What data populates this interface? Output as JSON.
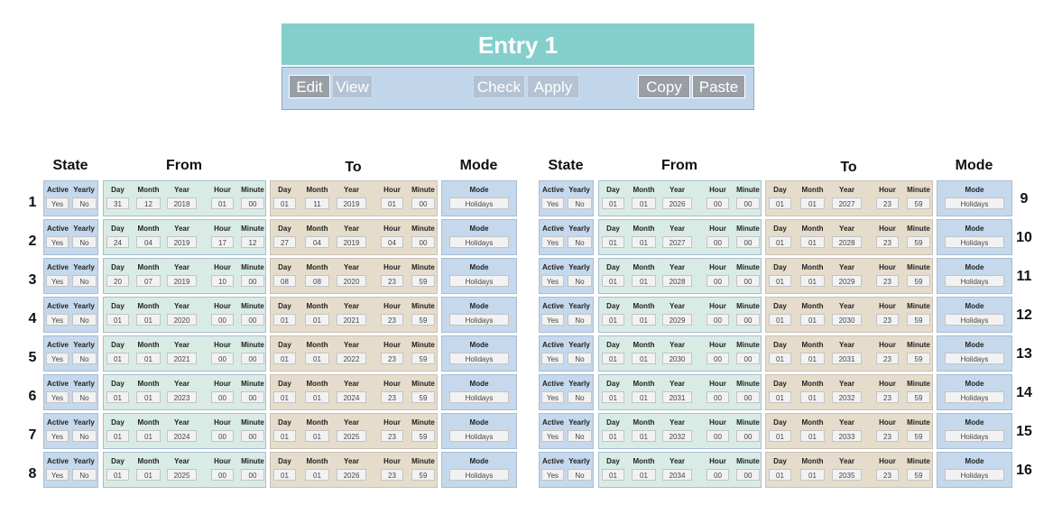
{
  "title": "Entry 1",
  "toolbar": {
    "edit": "Edit",
    "view": "View",
    "check": "Check",
    "apply": "Apply",
    "copy": "Copy",
    "paste": "Paste"
  },
  "headers": {
    "state": "State",
    "from": "From",
    "to": "To",
    "mode": "Mode"
  },
  "field_labels": {
    "active": "Active",
    "yearly": "Yearly",
    "day": "Day",
    "month": "Month",
    "year": "Year",
    "hour": "Hour",
    "minute": "Minute",
    "mode": "Mode"
  },
  "colors": {
    "title": "#84cfcc",
    "toolbar": "#c2d6eb",
    "state": "#c5d8ec",
    "from": "#d9ebe5",
    "to": "#e6dccb"
  },
  "entries": [
    {
      "n": "1",
      "active": "Yes",
      "yearly": "No",
      "from": [
        "31",
        "12",
        "2018",
        "01",
        "00"
      ],
      "to": [
        "01",
        "11",
        "2019",
        "01",
        "00"
      ],
      "mode": "Holidays"
    },
    {
      "n": "2",
      "active": "Yes",
      "yearly": "No",
      "from": [
        "24",
        "04",
        "2019",
        "17",
        "12"
      ],
      "to": [
        "27",
        "04",
        "2019",
        "04",
        "00"
      ],
      "mode": "Holidays"
    },
    {
      "n": "3",
      "active": "Yes",
      "yearly": "No",
      "from": [
        "20",
        "07",
        "2019",
        "10",
        "00"
      ],
      "to": [
        "08",
        "08",
        "2020",
        "23",
        "59"
      ],
      "mode": "Holidays"
    },
    {
      "n": "4",
      "active": "Yes",
      "yearly": "No",
      "from": [
        "01",
        "01",
        "2020",
        "00",
        "00"
      ],
      "to": [
        "01",
        "01",
        "2021",
        "23",
        "59"
      ],
      "mode": "Holidays"
    },
    {
      "n": "5",
      "active": "Yes",
      "yearly": "No",
      "from": [
        "01",
        "01",
        "2021",
        "00",
        "00"
      ],
      "to": [
        "01",
        "01",
        "2022",
        "23",
        "59"
      ],
      "mode": "Holidays"
    },
    {
      "n": "6",
      "active": "Yes",
      "yearly": "No",
      "from": [
        "01",
        "01",
        "2023",
        "00",
        "00"
      ],
      "to": [
        "01",
        "01",
        "2024",
        "23",
        "59"
      ],
      "mode": "Holidays"
    },
    {
      "n": "7",
      "active": "Yes",
      "yearly": "No",
      "from": [
        "01",
        "01",
        "2024",
        "00",
        "00"
      ],
      "to": [
        "01",
        "01",
        "2025",
        "23",
        "59"
      ],
      "mode": "Holidays"
    },
    {
      "n": "8",
      "active": "Yes",
      "yearly": "No",
      "from": [
        "01",
        "01",
        "2025",
        "00",
        "00"
      ],
      "to": [
        "01",
        "01",
        "2026",
        "23",
        "59"
      ],
      "mode": "Holidays"
    },
    {
      "n": "9",
      "active": "Yes",
      "yearly": "No",
      "from": [
        "01",
        "01",
        "2026",
        "00",
        "00"
      ],
      "to": [
        "01",
        "01",
        "2027",
        "23",
        "59"
      ],
      "mode": "Holidays"
    },
    {
      "n": "10",
      "active": "Yes",
      "yearly": "No",
      "from": [
        "01",
        "01",
        "2027",
        "00",
        "00"
      ],
      "to": [
        "01",
        "01",
        "2028",
        "23",
        "59"
      ],
      "mode": "Holidays"
    },
    {
      "n": "11",
      "active": "Yes",
      "yearly": "No",
      "from": [
        "01",
        "01",
        "2028",
        "00",
        "00"
      ],
      "to": [
        "01",
        "01",
        "2029",
        "23",
        "59"
      ],
      "mode": "Holidays"
    },
    {
      "n": "12",
      "active": "Yes",
      "yearly": "No",
      "from": [
        "01",
        "01",
        "2029",
        "00",
        "00"
      ],
      "to": [
        "01",
        "01",
        "2030",
        "23",
        "59"
      ],
      "mode": "Holidays"
    },
    {
      "n": "13",
      "active": "Yes",
      "yearly": "No",
      "from": [
        "01",
        "01",
        "2030",
        "00",
        "00"
      ],
      "to": [
        "01",
        "01",
        "2031",
        "23",
        "59"
      ],
      "mode": "Holidays"
    },
    {
      "n": "14",
      "active": "Yes",
      "yearly": "No",
      "from": [
        "01",
        "01",
        "2031",
        "00",
        "00"
      ],
      "to": [
        "01",
        "01",
        "2032",
        "23",
        "59"
      ],
      "mode": "Holidays"
    },
    {
      "n": "15",
      "active": "Yes",
      "yearly": "No",
      "from": [
        "01",
        "01",
        "2032",
        "00",
        "00"
      ],
      "to": [
        "01",
        "01",
        "2033",
        "23",
        "59"
      ],
      "mode": "Holidays"
    },
    {
      "n": "16",
      "active": "Yes",
      "yearly": "No",
      "from": [
        "01",
        "01",
        "2034",
        "00",
        "00"
      ],
      "to": [
        "01",
        "01",
        "2035",
        "23",
        "59"
      ],
      "mode": "Holidays"
    }
  ]
}
